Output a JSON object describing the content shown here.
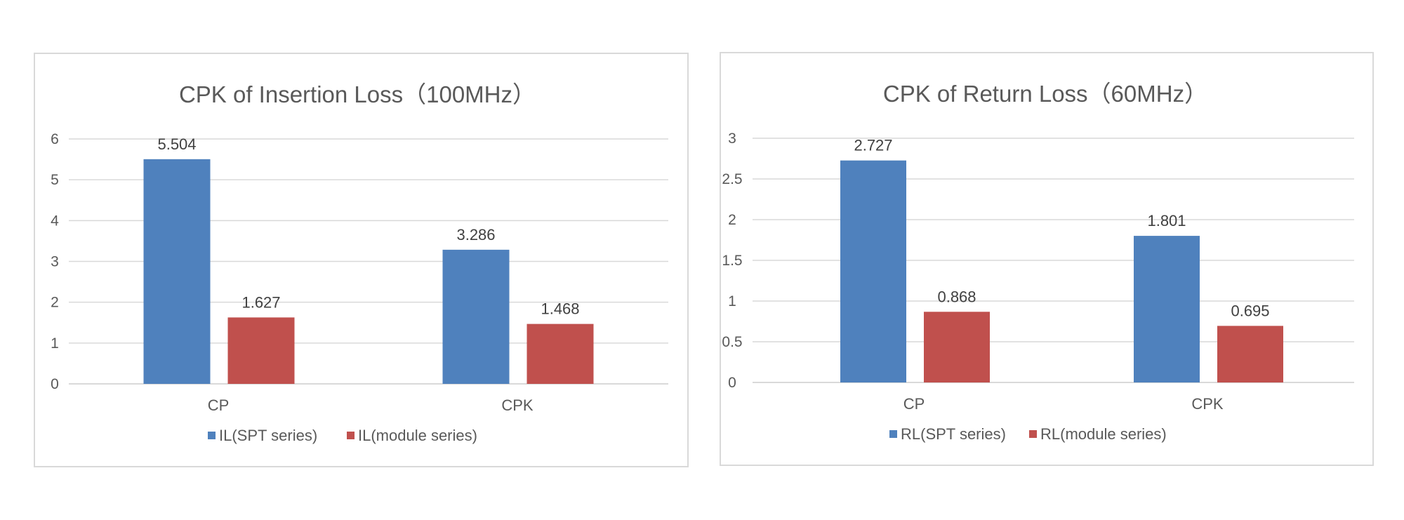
{
  "chart_data": [
    {
      "type": "bar",
      "title": "CPK of Insertion Loss（100MHz）",
      "categories": [
        "CP",
        "CPK"
      ],
      "series": [
        {
          "name": "IL(SPT series)",
          "values": [
            5.504,
            3.286
          ],
          "color": "#4f81bd"
        },
        {
          "name": "IL(module  series)",
          "values": [
            1.627,
            1.468
          ],
          "color": "#c0504d"
        }
      ],
      "y_ticks": [
        "0",
        "1",
        "2",
        "3",
        "4",
        "5",
        "6"
      ],
      "ylim": [
        0,
        6
      ],
      "grid": true,
      "legend_position": "bottom"
    },
    {
      "type": "bar",
      "title": "CPK of Return Loss（60MHz）",
      "categories": [
        "CP",
        "CPK"
      ],
      "series": [
        {
          "name": "RL(SPT series)",
          "values": [
            2.727,
            1.801
          ],
          "color": "#4f81bd"
        },
        {
          "name": "RL(module  series)",
          "values": [
            0.868,
            0.695
          ],
          "color": "#c0504d"
        }
      ],
      "y_ticks": [
        "0",
        "0.5",
        "1",
        "1.5",
        "2",
        "2.5",
        "3"
      ],
      "ylim": [
        0,
        3
      ],
      "grid": true,
      "legend_position": "bottom"
    }
  ]
}
